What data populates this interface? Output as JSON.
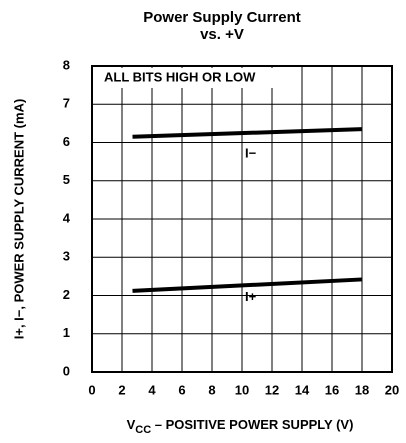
{
  "chart_data": {
    "type": "line",
    "title": "Power Supply Current",
    "subtitle": "vs. +V",
    "annotation": "ALL BITS HIGH OR LOW",
    "xlabel": {
      "base": "V",
      "subscript": "CC",
      "text": " – POSITIVE POWER SUPPLY (V)"
    },
    "ylabel": "I+, I−, POWER SUPPLY CURRENT (mA)",
    "x": [
      2.7,
      18
    ],
    "series": [
      {
        "name": "I−",
        "color": "#000000",
        "values": [
          6.15,
          6.35
        ]
      },
      {
        "name": "I+",
        "color": "#000000",
        "values": [
          2.12,
          2.42
        ]
      }
    ],
    "xlim": [
      0,
      20
    ],
    "xticks": [
      0,
      2,
      4,
      6,
      8,
      10,
      12,
      14,
      16,
      18,
      20
    ],
    "ylim": [
      0,
      8
    ],
    "yticks": [
      0,
      1,
      2,
      3,
      4,
      5,
      6,
      7,
      8
    ],
    "grid": true
  }
}
